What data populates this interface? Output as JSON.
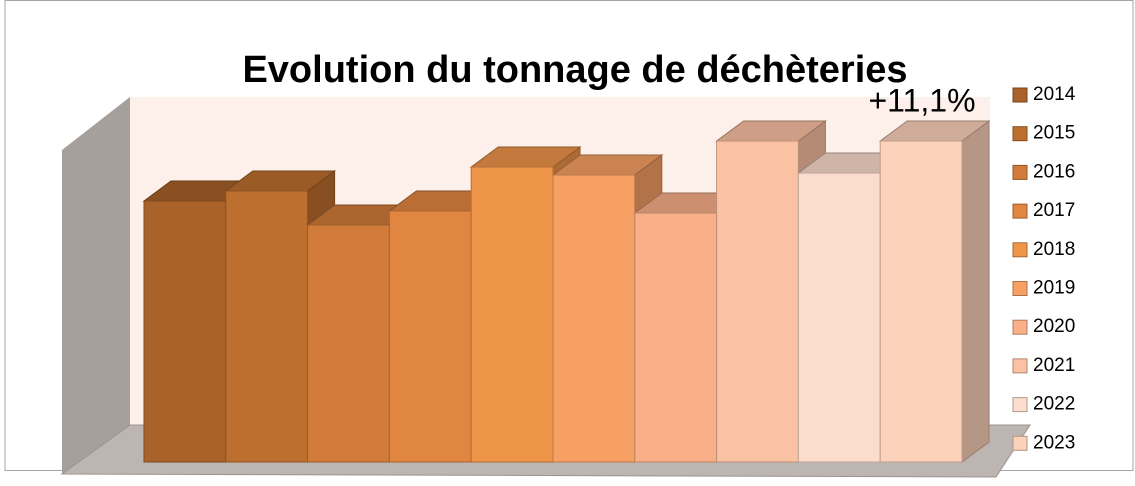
{
  "chart_data": {
    "type": "bar3d",
    "title": "Evolution du tonnage de déchèteries",
    "annotation": "+11,1%",
    "series": [
      {
        "name": "2014",
        "color": "#a9622a",
        "values": [
          261
        ]
      },
      {
        "name": "2015",
        "color": "#bd6f2f",
        "values": [
          271
        ]
      },
      {
        "name": "2016",
        "color": "#d17c3a",
        "values": [
          237
        ]
      },
      {
        "name": "2017",
        "color": "#e08641",
        "values": [
          251
        ]
      },
      {
        "name": "2018",
        "color": "#ef9549",
        "values": [
          295
        ]
      },
      {
        "name": "2019",
        "color": "#f7a064",
        "values": [
          287
        ]
      },
      {
        "name": "2020",
        "color": "#f9b089",
        "values": [
          249
        ]
      },
      {
        "name": "2021",
        "color": "#fbc1a3",
        "values": [
          321
        ]
      },
      {
        "name": "2022",
        "color": "#fcdccd",
        "values": [
          289
        ]
      },
      {
        "name": "2023",
        "color": "#fdd2ba",
        "values": [
          321
        ]
      }
    ],
    "legend": "right"
  }
}
